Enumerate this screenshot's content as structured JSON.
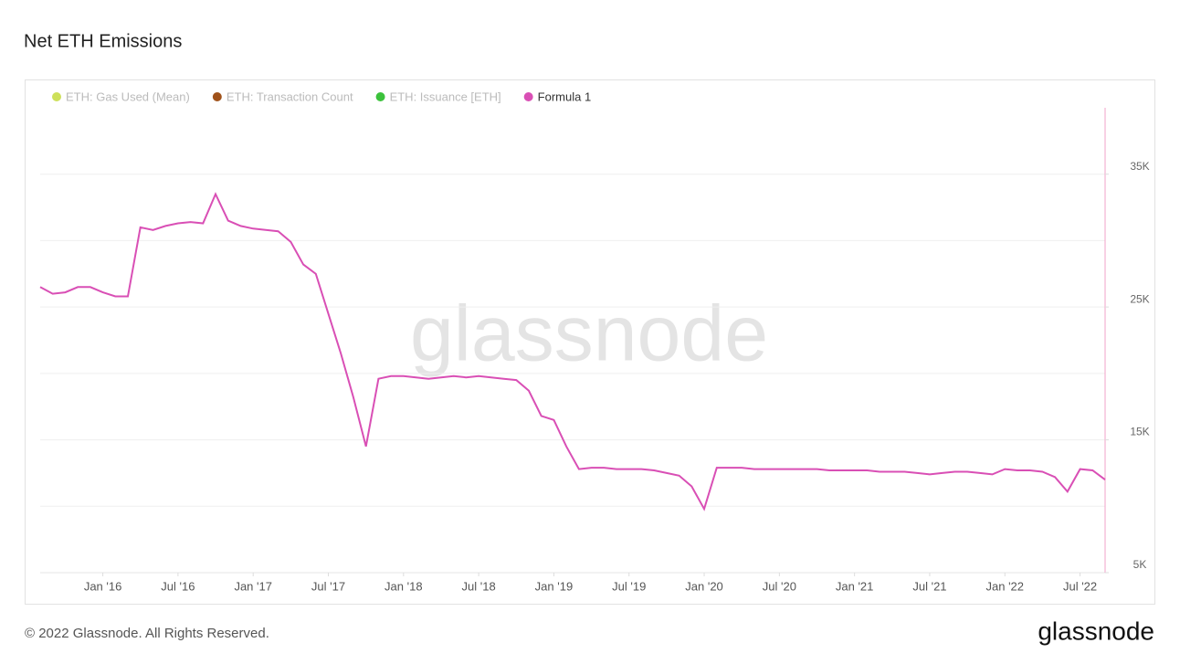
{
  "chart_data": {
    "type": "line",
    "title": "Net ETH Emissions",
    "legend_items": [
      {
        "name": "ETH: Gas Used (Mean)",
        "color": "#cde05a"
      },
      {
        "name": "ETH: Transaction Count",
        "color": "#a0521a"
      },
      {
        "name": "ETH: Issuance [ETH]",
        "color": "#3cc23c"
      }
    ],
    "x": [
      "2015-08",
      "2015-09",
      "2015-10",
      "2015-11",
      "2015-12",
      "2016-01",
      "2016-02",
      "2016-03",
      "2016-04",
      "2016-05",
      "2016-06",
      "2016-07",
      "2016-08",
      "2016-09",
      "2016-10",
      "2016-11",
      "2016-12",
      "2017-01",
      "2017-02",
      "2017-03",
      "2017-04",
      "2017-05",
      "2017-06",
      "2017-07",
      "2017-08",
      "2017-09",
      "2017-10",
      "2017-11",
      "2017-12",
      "2018-01",
      "2018-02",
      "2018-03",
      "2018-04",
      "2018-05",
      "2018-06",
      "2018-07",
      "2018-08",
      "2018-09",
      "2018-10",
      "2018-11",
      "2018-12",
      "2019-01",
      "2019-02",
      "2019-03",
      "2019-04",
      "2019-05",
      "2019-06",
      "2019-07",
      "2019-08",
      "2019-09",
      "2019-10",
      "2019-11",
      "2019-12",
      "2020-01",
      "2020-02",
      "2020-03",
      "2020-04",
      "2020-05",
      "2020-06",
      "2020-07",
      "2020-08",
      "2020-09",
      "2020-10",
      "2020-11",
      "2020-12",
      "2021-01",
      "2021-02",
      "2021-03",
      "2021-04",
      "2021-05",
      "2021-06",
      "2021-07",
      "2021-08",
      "2021-09",
      "2021-10",
      "2021-11",
      "2021-12",
      "2022-01",
      "2022-02",
      "2022-03",
      "2022-04",
      "2022-05",
      "2022-06",
      "2022-07",
      "2022-08",
      "2022-09"
    ],
    "series": [
      {
        "name": "Formula 1",
        "color": "#d94fb5",
        "values": [
          26500,
          26000,
          26100,
          26500,
          26500,
          26100,
          25800,
          25800,
          31000,
          30800,
          31100,
          31300,
          31400,
          31300,
          33500,
          31500,
          31100,
          30900,
          30800,
          30700,
          29900,
          28200,
          27500,
          24500,
          21500,
          18200,
          14500,
          19600,
          19800,
          19800,
          19700,
          19600,
          19700,
          19800,
          19700,
          19800,
          19700,
          19600,
          19500,
          18700,
          16800,
          16500,
          14500,
          12800,
          12900,
          12900,
          12800,
          12800,
          12800,
          12700,
          12500,
          12300,
          11500,
          9800,
          12900,
          12900,
          12900,
          12800,
          12800,
          12800,
          12800,
          12800,
          12800,
          12700,
          12700,
          12700,
          12700,
          12600,
          12600,
          12600,
          12500,
          12400,
          12500,
          12600,
          12600,
          12500,
          12400,
          12800,
          12700,
          12700,
          12600,
          12200,
          11100,
          12800,
          12700,
          12000
        ]
      }
    ],
    "xlim": [
      "2015-08",
      "2022-09"
    ],
    "xticks": [
      {
        "value": "2016-01",
        "label": "Jan '16"
      },
      {
        "value": "2016-07",
        "label": "Jul '16"
      },
      {
        "value": "2017-01",
        "label": "Jan '17"
      },
      {
        "value": "2017-07",
        "label": "Jul '17"
      },
      {
        "value": "2018-01",
        "label": "Jan '18"
      },
      {
        "value": "2018-07",
        "label": "Jul '18"
      },
      {
        "value": "2019-01",
        "label": "Jan '19"
      },
      {
        "value": "2019-07",
        "label": "Jul '19"
      },
      {
        "value": "2020-01",
        "label": "Jan '20"
      },
      {
        "value": "2020-07",
        "label": "Jul '20"
      },
      {
        "value": "2021-01",
        "label": "Jan '21"
      },
      {
        "value": "2021-07",
        "label": "Jul '21"
      },
      {
        "value": "2022-01",
        "label": "Jan '22"
      },
      {
        "value": "2022-07",
        "label": "Jul '22"
      }
    ],
    "ylim": [
      5000,
      40000
    ],
    "yticks": [
      {
        "value": 5000,
        "label": "5K"
      },
      {
        "value": 15000,
        "label": "15K"
      },
      {
        "value": 25000,
        "label": "25K"
      },
      {
        "value": 35000,
        "label": "35K"
      }
    ],
    "ygrid": [
      10000,
      15000,
      20000,
      25000,
      30000,
      35000
    ],
    "watermark": "glassnode",
    "footer": "© 2022 Glassnode. All Rights Reserved.",
    "logo": "glassnode"
  }
}
